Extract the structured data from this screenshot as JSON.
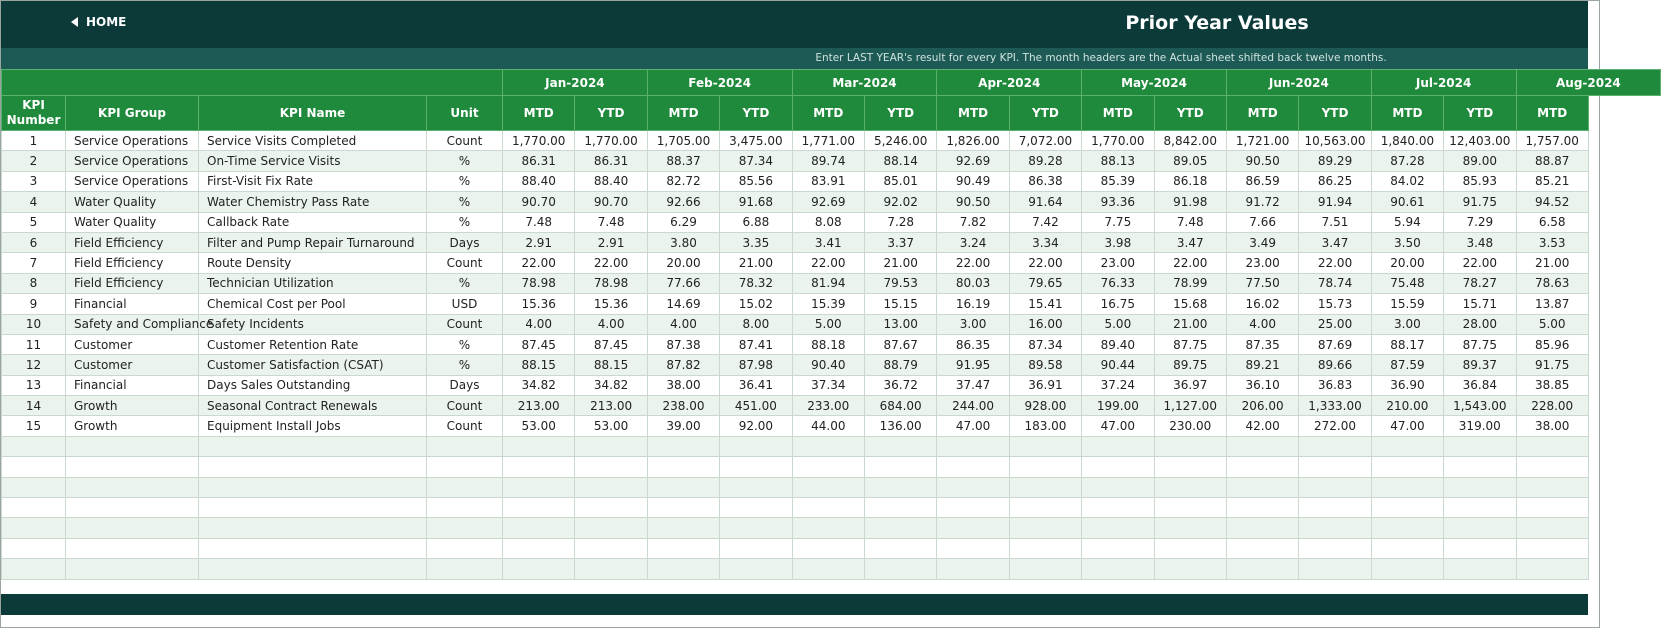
{
  "header": {
    "home": "HOME",
    "title": "Prior Year Values",
    "note": "Enter LAST YEAR's result for every KPI. The month headers are the Actual sheet shifted back twelve months."
  },
  "table": {
    "months": [
      "Jan-2024",
      "Feb-2024",
      "Mar-2024",
      "Apr-2024",
      "May-2024",
      "Jun-2024",
      "Jul-2024",
      "Aug-2024"
    ],
    "columns": [
      "KPI Number",
      "KPI Group",
      "KPI Name",
      "Unit",
      "MTD",
      "YTD",
      "MTD",
      "YTD",
      "MTD",
      "YTD",
      "MTD",
      "YTD",
      "MTD",
      "YTD",
      "MTD",
      "YTD",
      "MTD",
      "YTD",
      "MTD"
    ],
    "rows": [
      [
        "1",
        "Service Operations",
        "Service Visits Completed",
        "Count",
        "1,770.00",
        "1,770.00",
        "1,705.00",
        "3,475.00",
        "1,771.00",
        "5,246.00",
        "1,826.00",
        "7,072.00",
        "1,770.00",
        "8,842.00",
        "1,721.00",
        "10,563.00",
        "1,840.00",
        "12,403.00",
        "1,757.00"
      ],
      [
        "2",
        "Service Operations",
        "On-Time Service Visits",
        "%",
        "86.31",
        "86.31",
        "88.37",
        "87.34",
        "89.74",
        "88.14",
        "92.69",
        "89.28",
        "88.13",
        "89.05",
        "90.50",
        "89.29",
        "87.28",
        "89.00",
        "88.87"
      ],
      [
        "3",
        "Service Operations",
        "First-Visit Fix Rate",
        "%",
        "88.40",
        "88.40",
        "82.72",
        "85.56",
        "83.91",
        "85.01",
        "90.49",
        "86.38",
        "85.39",
        "86.18",
        "86.59",
        "86.25",
        "84.02",
        "85.93",
        "85.21"
      ],
      [
        "4",
        "Water Quality",
        "Water Chemistry Pass Rate",
        "%",
        "90.70",
        "90.70",
        "92.66",
        "91.68",
        "92.69",
        "92.02",
        "90.50",
        "91.64",
        "93.36",
        "91.98",
        "91.72",
        "91.94",
        "90.61",
        "91.75",
        "94.52"
      ],
      [
        "5",
        "Water Quality",
        "Callback Rate",
        "%",
        "7.48",
        "7.48",
        "6.29",
        "6.88",
        "8.08",
        "7.28",
        "7.82",
        "7.42",
        "7.75",
        "7.48",
        "7.66",
        "7.51",
        "5.94",
        "7.29",
        "6.58"
      ],
      [
        "6",
        "Field Efficiency",
        "Filter and Pump Repair Turnaround",
        "Days",
        "2.91",
        "2.91",
        "3.80",
        "3.35",
        "3.41",
        "3.37",
        "3.24",
        "3.34",
        "3.98",
        "3.47",
        "3.49",
        "3.47",
        "3.50",
        "3.48",
        "3.53"
      ],
      [
        "7",
        "Field Efficiency",
        "Route Density",
        "Count",
        "22.00",
        "22.00",
        "20.00",
        "21.00",
        "22.00",
        "21.00",
        "22.00",
        "22.00",
        "23.00",
        "22.00",
        "23.00",
        "22.00",
        "20.00",
        "22.00",
        "21.00"
      ],
      [
        "8",
        "Field Efficiency",
        "Technician Utilization",
        "%",
        "78.98",
        "78.98",
        "77.66",
        "78.32",
        "81.94",
        "79.53",
        "80.03",
        "79.65",
        "76.33",
        "78.99",
        "77.50",
        "78.74",
        "75.48",
        "78.27",
        "78.63"
      ],
      [
        "9",
        "Financial",
        "Chemical Cost per Pool",
        "USD",
        "15.36",
        "15.36",
        "14.69",
        "15.02",
        "15.39",
        "15.15",
        "16.19",
        "15.41",
        "16.75",
        "15.68",
        "16.02",
        "15.73",
        "15.59",
        "15.71",
        "13.87"
      ],
      [
        "10",
        "Safety and Compliance",
        "Safety Incidents",
        "Count",
        "4.00",
        "4.00",
        "4.00",
        "8.00",
        "5.00",
        "13.00",
        "3.00",
        "16.00",
        "5.00",
        "21.00",
        "4.00",
        "25.00",
        "3.00",
        "28.00",
        "5.00"
      ],
      [
        "11",
        "Customer",
        "Customer Retention Rate",
        "%",
        "87.45",
        "87.45",
        "87.38",
        "87.41",
        "88.18",
        "87.67",
        "86.35",
        "87.34",
        "89.40",
        "87.75",
        "87.35",
        "87.69",
        "88.17",
        "87.75",
        "85.96"
      ],
      [
        "12",
        "Customer",
        "Customer Satisfaction (CSAT)",
        "%",
        "88.15",
        "88.15",
        "87.82",
        "87.98",
        "90.40",
        "88.79",
        "91.95",
        "89.58",
        "90.44",
        "89.75",
        "89.21",
        "89.66",
        "87.59",
        "89.37",
        "91.75"
      ],
      [
        "13",
        "Financial",
        "Days Sales Outstanding",
        "Days",
        "34.82",
        "34.82",
        "38.00",
        "36.41",
        "37.34",
        "36.72",
        "37.47",
        "36.91",
        "37.24",
        "36.97",
        "36.10",
        "36.83",
        "36.90",
        "36.84",
        "38.85"
      ],
      [
        "14",
        "Growth",
        "Seasonal Contract Renewals",
        "Count",
        "213.00",
        "213.00",
        "238.00",
        "451.00",
        "233.00",
        "684.00",
        "244.00",
        "928.00",
        "199.00",
        "1,127.00",
        "206.00",
        "1,333.00",
        "210.00",
        "1,543.00",
        "228.00"
      ],
      [
        "15",
        "Growth",
        "Equipment Install Jobs",
        "Count",
        "53.00",
        "53.00",
        "39.00",
        "92.00",
        "44.00",
        "136.00",
        "47.00",
        "183.00",
        "47.00",
        "230.00",
        "42.00",
        "272.00",
        "47.00",
        "319.00",
        "38.00"
      ]
    ]
  }
}
